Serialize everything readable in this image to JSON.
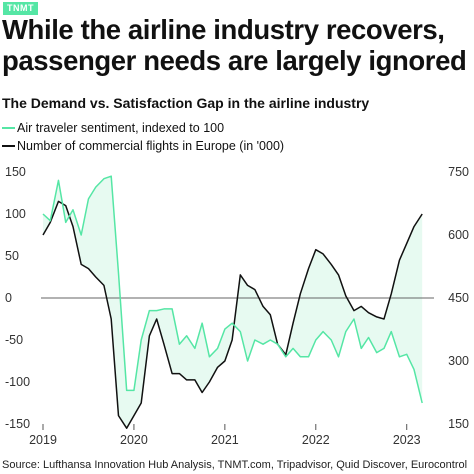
{
  "brand": {
    "label": "TNMT",
    "color": "#55e6a5"
  },
  "headline": {
    "line1": "While the airline industry recovers,",
    "line2": "passenger needs are largely ignored"
  },
  "footer": {
    "source": "Source: Lufthansa Innovation Hub Analysis, TNMT.com, Tripadvisor, Quid Discover, Eurocontrol"
  },
  "chart_data": {
    "type": "line",
    "title": "The Demand vs. Satisfaction Gap in the airline industry",
    "x_ticks": [
      "2019",
      "2020",
      "2021",
      "2022",
      "2023"
    ],
    "y_left": {
      "min": -150,
      "max": 150,
      "ticks": [
        "150",
        "100",
        "50",
        "0",
        "-50",
        "-100",
        "-150"
      ]
    },
    "y_right": {
      "min": 150,
      "max": 750,
      "ticks": [
        "750",
        "600",
        "450",
        "300",
        "150"
      ]
    },
    "zero_line": true,
    "fill_between": true,
    "colors": {
      "sentiment": "#55e6a5",
      "flights": "#111111",
      "fill": "#e7faf1",
      "zero": "#666666"
    },
    "series": [
      {
        "name": "Air traveler sentiment, indexed to 100",
        "axis": "left",
        "x": [
          2019.0,
          2019.08,
          2019.17,
          2019.25,
          2019.33,
          2019.42,
          2019.5,
          2019.58,
          2019.67,
          2019.75,
          2019.83,
          2019.92,
          2020.0,
          2020.08,
          2020.17,
          2020.25,
          2020.33,
          2020.42,
          2020.5,
          2020.58,
          2020.67,
          2020.75,
          2020.83,
          2020.92,
          2021.0,
          2021.08,
          2021.17,
          2021.25,
          2021.33,
          2021.42,
          2021.5,
          2021.58,
          2021.67,
          2021.75,
          2021.83,
          2021.92,
          2022.0,
          2022.08,
          2022.17,
          2022.25,
          2022.33,
          2022.42,
          2022.5,
          2022.58,
          2022.67,
          2022.75,
          2022.83,
          2022.92,
          2023.0,
          2023.08,
          2023.17
        ],
        "values": [
          100,
          92,
          140,
          90,
          105,
          75,
          118,
          132,
          142,
          145,
          30,
          -110,
          -110,
          -50,
          -15,
          -15,
          -13,
          -13,
          -55,
          -45,
          -60,
          -30,
          -70,
          -60,
          -37,
          -30,
          -40,
          -75,
          -50,
          -55,
          -50,
          -55,
          -70,
          -60,
          -70,
          -70,
          -50,
          -40,
          -50,
          -70,
          -40,
          -25,
          -60,
          -47,
          -65,
          -60,
          -40,
          -70,
          -67,
          -85,
          -125
        ]
      },
      {
        "name": "Number of commercial flights in Europe (in '000)",
        "axis": "right",
        "x": [
          2019.0,
          2019.08,
          2019.17,
          2019.25,
          2019.33,
          2019.42,
          2019.5,
          2019.58,
          2019.67,
          2019.75,
          2019.83,
          2019.92,
          2020.0,
          2020.08,
          2020.17,
          2020.25,
          2020.33,
          2020.42,
          2020.5,
          2020.58,
          2020.67,
          2020.75,
          2020.83,
          2020.92,
          2021.0,
          2021.08,
          2021.17,
          2021.25,
          2021.33,
          2021.42,
          2021.5,
          2021.58,
          2021.67,
          2021.75,
          2021.83,
          2021.92,
          2022.0,
          2022.08,
          2022.17,
          2022.25,
          2022.33,
          2022.42,
          2022.5,
          2022.58,
          2022.67,
          2022.75,
          2022.83,
          2022.92,
          2023.0,
          2023.08,
          2023.17
        ],
        "values": [
          600,
          630,
          680,
          670,
          620,
          530,
          520,
          500,
          480,
          400,
          170,
          140,
          170,
          200,
          360,
          400,
          340,
          270,
          270,
          255,
          255,
          225,
          250,
          285,
          300,
          350,
          505,
          480,
          470,
          430,
          410,
          340,
          315,
          390,
          460,
          520,
          565,
          555,
          530,
          505,
          455,
          420,
          430,
          415,
          405,
          400,
          460,
          540,
          580,
          620,
          650
        ]
      }
    ]
  }
}
